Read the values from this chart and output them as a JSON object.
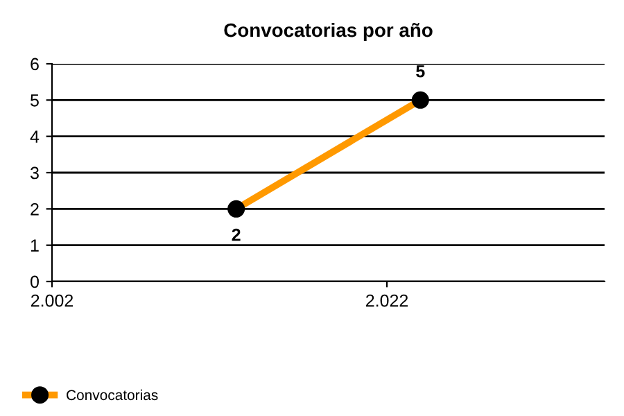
{
  "chart_data": {
    "type": "line",
    "title": "Convocatorias por año",
    "x": [
      2013,
      2024
    ],
    "series": [
      {
        "name": "Convocatorias",
        "color": "#ff9900",
        "values": [
          2,
          5
        ]
      }
    ],
    "xlim": [
      2002,
      2035
    ],
    "xticks": [
      {
        "value": 2002,
        "label": "2.002"
      },
      {
        "value": 2022,
        "label": "2.022"
      }
    ],
    "ylim": [
      0,
      6
    ],
    "yticks": [
      0,
      1,
      2,
      3,
      4,
      5,
      6
    ],
    "grid": "y",
    "legend": "bottom left",
    "marker": "circle",
    "line_style": "solid",
    "data_labels": true
  }
}
